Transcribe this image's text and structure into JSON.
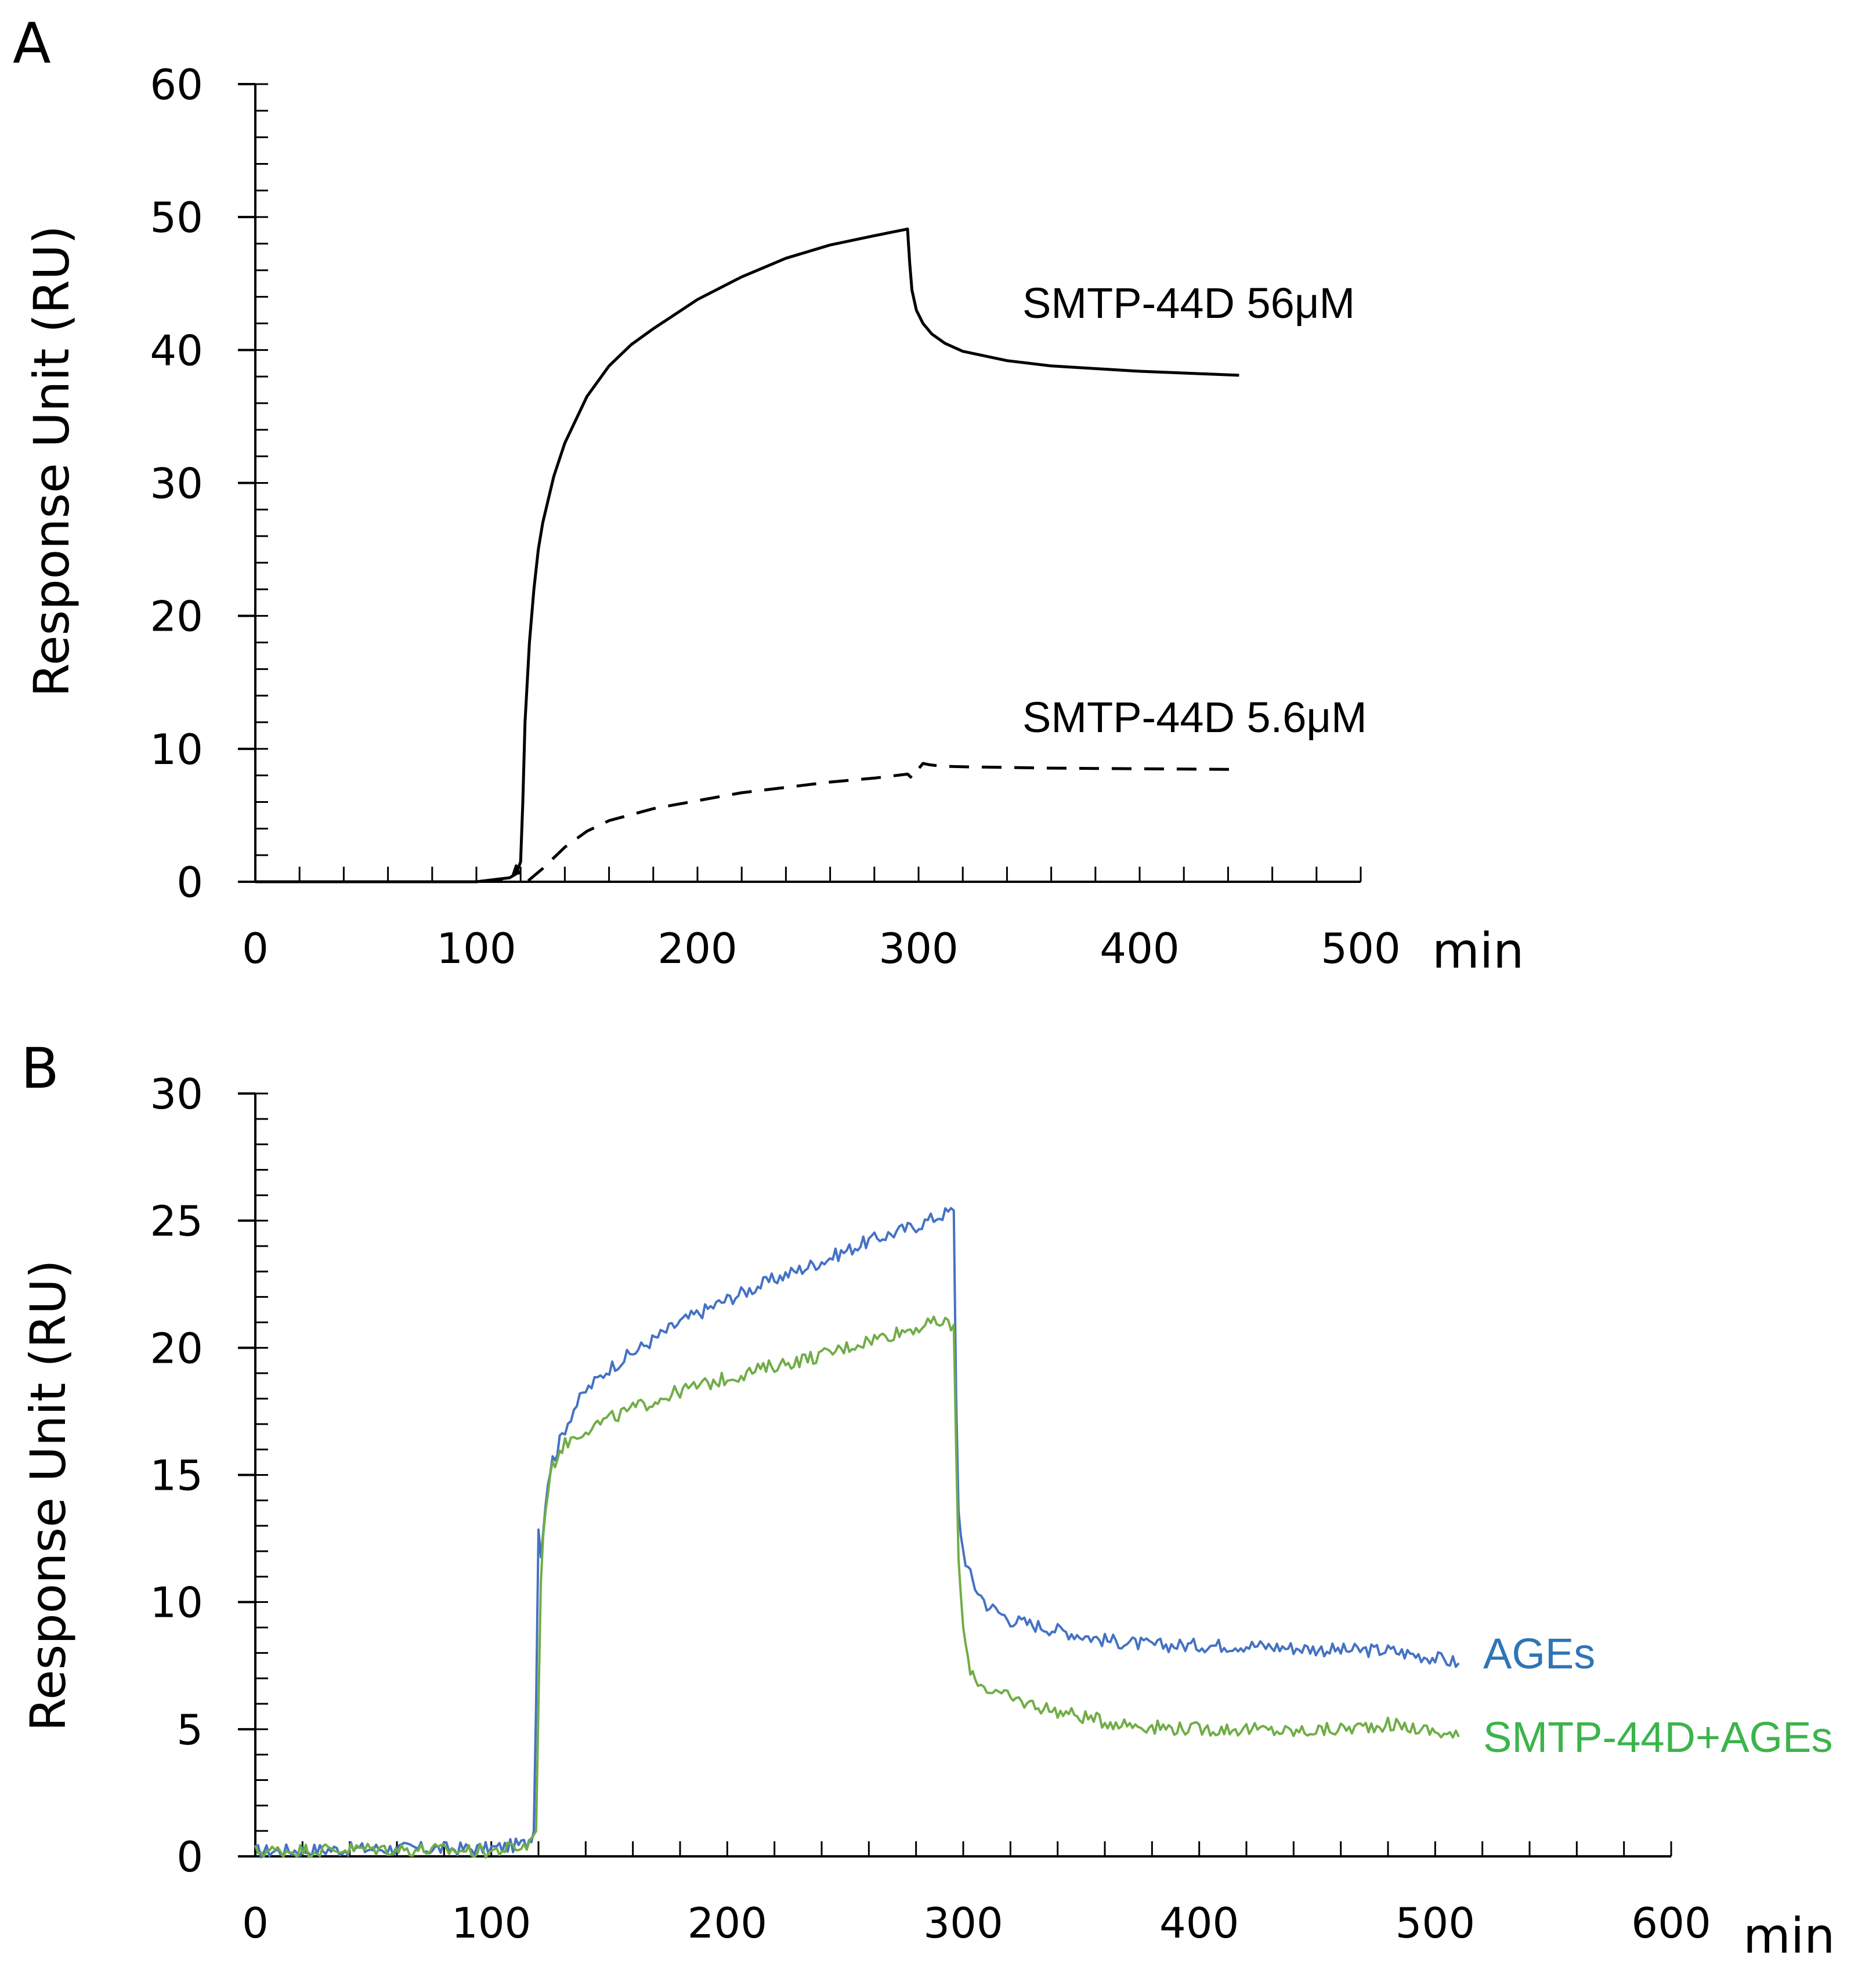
{
  "chart_data": [
    {
      "panel": "A",
      "type": "line",
      "xlabel": "min",
      "ylabel": "Response Unit (RU)",
      "xlim": [
        0,
        500
      ],
      "ylim": [
        0,
        60
      ],
      "xticks": [
        0,
        100,
        200,
        300,
        400,
        500
      ],
      "yticks": [
        0,
        10,
        20,
        30,
        40,
        50,
        60
      ],
      "x_minor_step": 20,
      "y_minor_step": 2,
      "series": [
        {
          "name": "SMTP-44D  56μM",
          "color": "#000000",
          "dash": "solid",
          "x": [
            0,
            60,
            100,
            110,
            115,
            118,
            120,
            121,
            122,
            124,
            126,
            128,
            130,
            135,
            140,
            150,
            160,
            170,
            180,
            200,
            220,
            240,
            260,
            280,
            295,
            296,
            297,
            299,
            302,
            306,
            312,
            320,
            340,
            360,
            400,
            445
          ],
          "y": [
            0,
            0,
            0,
            0.2,
            0.3,
            0.6,
            1.5,
            6,
            12,
            18,
            22,
            25,
            27,
            30.5,
            33,
            36.5,
            38.8,
            40.4,
            41.6,
            43.8,
            45.5,
            46.9,
            47.9,
            48.6,
            49.1,
            46.5,
            44.5,
            43,
            42,
            41.2,
            40.5,
            39.9,
            39.2,
            38.8,
            38.4,
            38.1
          ]
        },
        {
          "name": "SMTP-44D  5.6μM",
          "color": "#000000",
          "dash": "dashed",
          "x": [
            0,
            100,
            116,
            118,
            120,
            123,
            125,
            130,
            140,
            150,
            160,
            180,
            200,
            220,
            240,
            260,
            280,
            295,
            297,
            300,
            302,
            305,
            310,
            320,
            340,
            360,
            400,
            445
          ],
          "y": [
            0,
            0,
            0.2,
            1.2,
            0.3,
            0,
            0.3,
            1,
            2.6,
            3.8,
            4.6,
            5.5,
            6.1,
            6.7,
            7.1,
            7.5,
            7.8,
            8.1,
            7.8,
            8.5,
            8.9,
            8.8,
            8.7,
            8.65,
            8.6,
            8.55,
            8.5,
            8.45
          ]
        }
      ],
      "annotations": [
        "SMTP-44D  56μM",
        "SMTP-44D  5.6μM"
      ]
    },
    {
      "panel": "B",
      "type": "line",
      "xlabel": "min",
      "ylabel": "Response Unit (RU)",
      "xlim": [
        0,
        600
      ],
      "ylim": [
        0,
        30
      ],
      "xticks": [
        0,
        100,
        200,
        300,
        400,
        500,
        600
      ],
      "yticks": [
        0,
        5,
        10,
        15,
        20,
        25,
        30
      ],
      "x_minor_step": 20,
      "y_minor_step": 1,
      "series": [
        {
          "name": "AGEs",
          "color": "#4472c4",
          "x": [
            0,
            50,
            100,
            115,
            118,
            119,
            120,
            121,
            122,
            124,
            126,
            128,
            130,
            135,
            140,
            150,
            160,
            180,
            200,
            220,
            240,
            260,
            280,
            290,
            296,
            297,
            298,
            300,
            302,
            305,
            310,
            320,
            340,
            360,
            380,
            400,
            420,
            440,
            460,
            480,
            500,
            510
          ],
          "y": [
            0.2,
            0.3,
            0.3,
            0.5,
            1,
            6,
            13,
            11.8,
            13,
            14.8,
            15.6,
            16,
            16.6,
            17.6,
            18.3,
            19.2,
            19.8,
            21,
            21.9,
            22.7,
            23.4,
            24.2,
            24.8,
            25.2,
            25.4,
            18,
            13.5,
            12,
            11.3,
            10.6,
            9.9,
            9.3,
            8.9,
            8.5,
            8.3,
            8.3,
            8.3,
            8.2,
            8.1,
            8.1,
            7.8,
            7.6
          ]
        },
        {
          "name": "SMTP-44D+AGEs",
          "color": "#70ad47",
          "x": [
            0,
            50,
            100,
            115,
            119,
            120,
            121,
            123,
            125,
            128,
            130,
            135,
            140,
            150,
            160,
            180,
            200,
            220,
            240,
            260,
            280,
            290,
            296,
            297,
            298,
            300,
            302,
            305,
            310,
            320,
            340,
            360,
            380,
            400,
            420,
            440,
            460,
            480,
            500,
            510
          ],
          "y": [
            0.2,
            0.3,
            0.2,
            0.4,
            1,
            6,
            11,
            13.8,
            15,
            15.8,
            16.1,
            16.5,
            16.8,
            17.2,
            17.6,
            18.3,
            18.8,
            19.3,
            19.7,
            20.3,
            20.8,
            21,
            20.9,
            16,
            11.5,
            9,
            7.6,
            7,
            6.6,
            6.2,
            5.7,
            5.3,
            5.1,
            5,
            5,
            4.9,
            5,
            5.2,
            4.9,
            4.7
          ]
        }
      ],
      "annotations": [
        "AGEs",
        "SMTP-44D+AGEs"
      ]
    }
  ]
}
